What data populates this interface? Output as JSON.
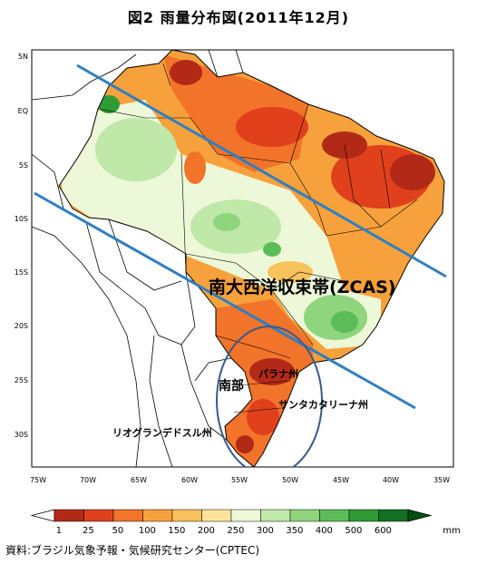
{
  "title": "図2 雨量分布図(2011年12月)",
  "map": {
    "lat_ticks": [
      "5N",
      "EQ",
      "5S",
      "10S",
      "15S",
      "20S",
      "25S",
      "30S"
    ],
    "lon_ticks": [
      "75W",
      "70W",
      "65W",
      "60W",
      "55W",
      "50W",
      "45W",
      "40W",
      "35W"
    ],
    "labels": {
      "zcas": "南大西洋収束帯(ZCAS)",
      "south": "南部",
      "parana": "パラナ州",
      "santa_catarina": "サンタカタリーナ州",
      "rio_grande": "リオグランデドスル州"
    },
    "colors": {
      "band_line": "#2f7fc1",
      "ellipse": "#3a5a8c"
    }
  },
  "legend": {
    "values": [
      "1",
      "25",
      "50",
      "100",
      "150",
      "200",
      "250",
      "300",
      "350",
      "400",
      "500",
      "600"
    ],
    "unit": "mm",
    "colors": [
      "#b22a17",
      "#e0401c",
      "#f2732a",
      "#f7a13c",
      "#f8c25c",
      "#fbe49a",
      "#edf8d8",
      "#bfe8a9",
      "#8ed57e",
      "#5cbd58",
      "#2f9a36",
      "#137022",
      "#064d12"
    ]
  },
  "source": "資料:ブラジル気象予報・気候研究センター(CPTEC)"
}
